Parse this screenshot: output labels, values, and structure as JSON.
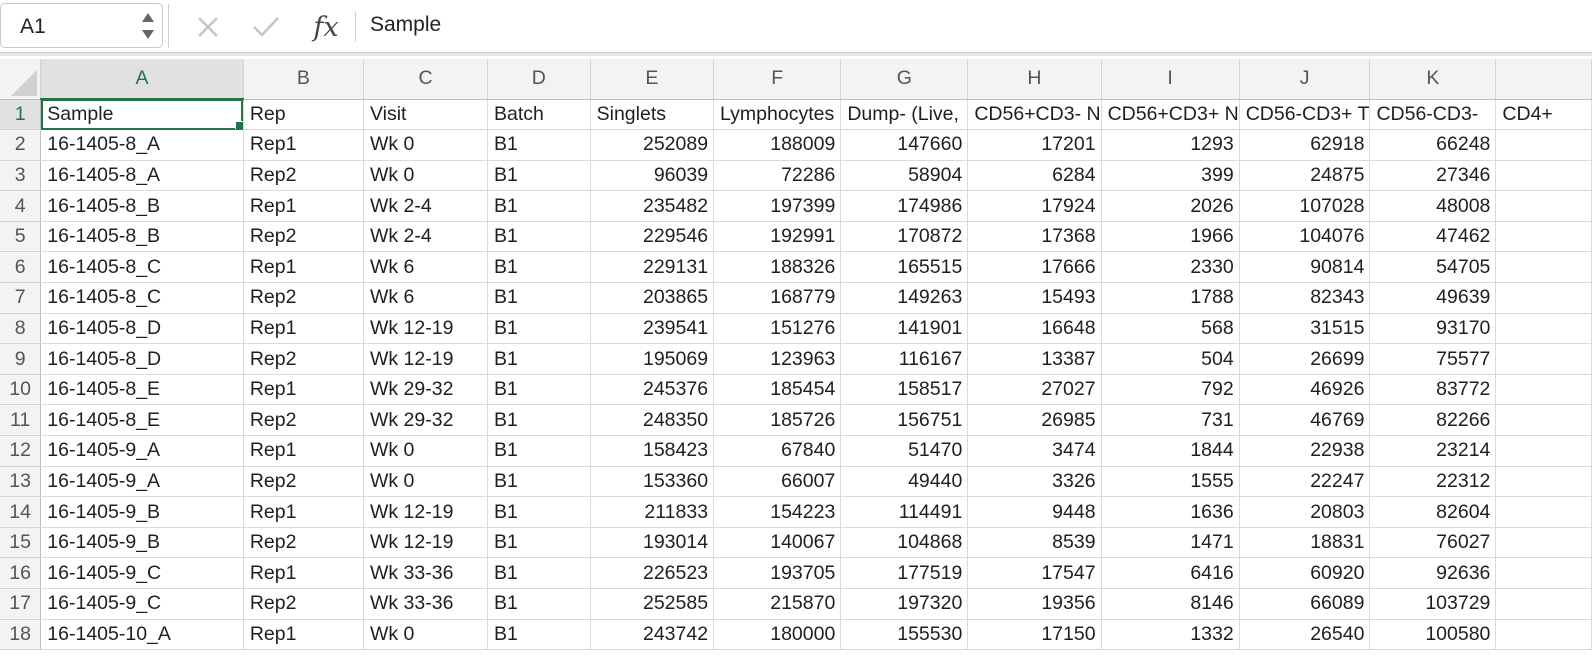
{
  "formula_bar": {
    "name_box": "A1",
    "cancel_icon": "x-icon",
    "confirm_icon": "check-icon",
    "function_label": "fx",
    "formula_text": "Sample"
  },
  "columns": [
    "A",
    "B",
    "C",
    "D",
    "E",
    "F",
    "G",
    "H",
    "I",
    "J",
    "K",
    ""
  ],
  "active_cell": "A1",
  "accent_color": "#217346",
  "rows": [
    {
      "n": "1",
      "cells": [
        "Sample",
        "Rep",
        "Visit",
        "Batch",
        "Singlets",
        "Lymphocytes",
        "Dump- (Live,",
        "CD56+CD3- N",
        "CD56+CD3+ N",
        "CD56-CD3+ T",
        "CD56-CD3-",
        "CD4+"
      ]
    },
    {
      "n": "2",
      "cells": [
        "16-1405-8_A",
        "Rep1",
        "Wk 0",
        "B1",
        "252089",
        "188009",
        "147660",
        "17201",
        "1293",
        "62918",
        "66248",
        ""
      ]
    },
    {
      "n": "3",
      "cells": [
        "16-1405-8_A",
        "Rep2",
        "Wk 0",
        "B1",
        "96039",
        "72286",
        "58904",
        "6284",
        "399",
        "24875",
        "27346",
        ""
      ]
    },
    {
      "n": "4",
      "cells": [
        "16-1405-8_B",
        "Rep1",
        "Wk 2-4",
        "B1",
        "235482",
        "197399",
        "174986",
        "17924",
        "2026",
        "107028",
        "48008",
        ""
      ]
    },
    {
      "n": "5",
      "cells": [
        "16-1405-8_B",
        "Rep2",
        "Wk 2-4",
        "B1",
        "229546",
        "192991",
        "170872",
        "17368",
        "1966",
        "104076",
        "47462",
        ""
      ]
    },
    {
      "n": "6",
      "cells": [
        "16-1405-8_C",
        "Rep1",
        "Wk 6",
        "B1",
        "229131",
        "188326",
        "165515",
        "17666",
        "2330",
        "90814",
        "54705",
        ""
      ]
    },
    {
      "n": "7",
      "cells": [
        "16-1405-8_C",
        "Rep2",
        "Wk 6",
        "B1",
        "203865",
        "168779",
        "149263",
        "15493",
        "1788",
        "82343",
        "49639",
        ""
      ]
    },
    {
      "n": "8",
      "cells": [
        "16-1405-8_D",
        "Rep1",
        "Wk 12-19",
        "B1",
        "239541",
        "151276",
        "141901",
        "16648",
        "568",
        "31515",
        "93170",
        ""
      ]
    },
    {
      "n": "9",
      "cells": [
        "16-1405-8_D",
        "Rep2",
        "Wk 12-19",
        "B1",
        "195069",
        "123963",
        "116167",
        "13387",
        "504",
        "26699",
        "75577",
        ""
      ]
    },
    {
      "n": "10",
      "cells": [
        "16-1405-8_E",
        "Rep1",
        "Wk 29-32",
        "B1",
        "245376",
        "185454",
        "158517",
        "27027",
        "792",
        "46926",
        "83772",
        ""
      ]
    },
    {
      "n": "11",
      "cells": [
        "16-1405-8_E",
        "Rep2",
        "Wk 29-32",
        "B1",
        "248350",
        "185726",
        "156751",
        "26985",
        "731",
        "46769",
        "82266",
        ""
      ]
    },
    {
      "n": "12",
      "cells": [
        "16-1405-9_A",
        "Rep1",
        "Wk 0",
        "B1",
        "158423",
        "67840",
        "51470",
        "3474",
        "1844",
        "22938",
        "23214",
        ""
      ]
    },
    {
      "n": "13",
      "cells": [
        "16-1405-9_A",
        "Rep2",
        "Wk 0",
        "B1",
        "153360",
        "66007",
        "49440",
        "3326",
        "1555",
        "22247",
        "22312",
        ""
      ]
    },
    {
      "n": "14",
      "cells": [
        "16-1405-9_B",
        "Rep1",
        "Wk 12-19",
        "B1",
        "211833",
        "154223",
        "114491",
        "9448",
        "1636",
        "20803",
        "82604",
        ""
      ]
    },
    {
      "n": "15",
      "cells": [
        "16-1405-9_B",
        "Rep2",
        "Wk 12-19",
        "B1",
        "193014",
        "140067",
        "104868",
        "8539",
        "1471",
        "18831",
        "76027",
        ""
      ]
    },
    {
      "n": "16",
      "cells": [
        "16-1405-9_C",
        "Rep1",
        "Wk 33-36",
        "B1",
        "226523",
        "193705",
        "177519",
        "17547",
        "6416",
        "60920",
        "92636",
        ""
      ]
    },
    {
      "n": "17",
      "cells": [
        "16-1405-9_C",
        "Rep2",
        "Wk 33-36",
        "B1",
        "252585",
        "215870",
        "197320",
        "19356",
        "8146",
        "66089",
        "103729",
        ""
      ]
    },
    {
      "n": "18",
      "cells": [
        "16-1405-10_A",
        "Rep1",
        "Wk 0",
        "B1",
        "243742",
        "180000",
        "155530",
        "17150",
        "1332",
        "26540",
        "100580",
        ""
      ]
    }
  ]
}
